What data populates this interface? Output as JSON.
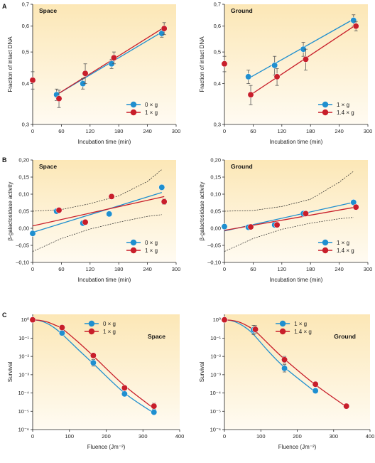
{
  "figure": {
    "row_labels": [
      "A",
      "B",
      "C"
    ],
    "colors": {
      "blue": "#1f8fcf",
      "red": "#c81e2a",
      "bg_top": "#fce9bd",
      "bg_bottom": "#fffaf0"
    }
  },
  "chart_data": [
    {
      "id": "A-space",
      "type": "scatter",
      "title": "Space",
      "xlabel": "Incubation time (min)",
      "ylabel": "Fraction of intact DNA",
      "yscale": "log",
      "xlim": [
        0,
        300
      ],
      "ylim": [
        0.3,
        0.7
      ],
      "xticks": [
        0,
        60,
        120,
        180,
        240,
        300
      ],
      "yticks": [
        0.3,
        0.4,
        0.5,
        0.6,
        0.7
      ],
      "ytick_labels": [
        "0,3",
        "0,4",
        "0,5",
        "0,6",
        "0,7"
      ],
      "legend_position": "bottom-right",
      "series": [
        {
          "name": "0 × g",
          "color": "#1f8fcf",
          "points": [
            [
              50,
              0.37
            ],
            [
              105,
              0.4
            ],
            [
              165,
              0.46
            ],
            [
              270,
              0.57
            ]
          ],
          "errors": [
            0.015,
            0.015,
            0.015,
            0.015
          ],
          "fit": [
            [
              50,
              0.37
            ],
            [
              270,
              0.575
            ]
          ]
        },
        {
          "name": "1 × g",
          "color": "#c81e2a",
          "points": [
            [
              0,
              0.41
            ],
            [
              55,
              0.36
            ],
            [
              110,
              0.43
            ],
            [
              170,
              0.48
            ],
            [
              275,
              0.59
            ]
          ],
          "errors": [
            0.025,
            0.022,
            0.03,
            0.02,
            0.025
          ],
          "fit": [
            [
              50,
              0.37
            ],
            [
              275,
              0.595
            ]
          ]
        }
      ]
    },
    {
      "id": "A-ground",
      "type": "scatter",
      "title": "Ground",
      "xlabel": "Incubation time (min)",
      "ylabel": "Fraction of intact DNA",
      "yscale": "log",
      "xlim": [
        0,
        300
      ],
      "ylim": [
        0.3,
        0.7
      ],
      "xticks": [
        0,
        60,
        120,
        180,
        240,
        300
      ],
      "yticks": [
        0.3,
        0.4,
        0.5,
        0.6,
        0.7
      ],
      "ytick_labels": [
        "0,3",
        "0,4",
        "0,5",
        "0,6",
        "0,7"
      ],
      "legend_position": "bottom-right",
      "series": [
        {
          "name": "1 × g",
          "color": "#1f8fcf",
          "points": [
            [
              50,
              0.42
            ],
            [
              105,
              0.455
            ],
            [
              165,
              0.51
            ],
            [
              270,
              0.625
            ]
          ],
          "errors": [
            0.02,
            0.03,
            0.025,
            0.025
          ],
          "fit": [
            [
              50,
              0.415
            ],
            [
              270,
              0.63
            ]
          ]
        },
        {
          "name": "1.4 × g",
          "color": "#c81e2a",
          "points": [
            [
              0,
              0.46
            ],
            [
              55,
              0.37
            ],
            [
              110,
              0.42
            ],
            [
              170,
              0.475
            ],
            [
              275,
              0.6
            ]
          ],
          "errors": [
            0.025,
            0.025,
            0.025,
            0.035,
            0.02
          ],
          "fit": [
            [
              55,
              0.37
            ],
            [
              275,
              0.605
            ]
          ]
        }
      ]
    },
    {
      "id": "B-space",
      "type": "scatter",
      "title": "Space",
      "xlabel": "Incubation time (min)",
      "ylabel": "β-galactosidase activity",
      "yscale": "linear",
      "xlim": [
        0,
        300
      ],
      "ylim": [
        -0.1,
        0.2
      ],
      "xticks": [
        0,
        60,
        120,
        180,
        240,
        300
      ],
      "yticks": [
        -0.1,
        -0.05,
        0.0,
        0.05,
        0.1,
        0.15,
        0.2
      ],
      "ytick_labels": [
        "–0,10",
        "–0,05",
        "0,00",
        "0,05",
        "0,10",
        "0,15",
        "0,20"
      ],
      "legend_position": "bottom-right",
      "series": [
        {
          "name": "0 × g",
          "color": "#1f8fcf",
          "points": [
            [
              0,
              -0.015
            ],
            [
              50,
              0.05
            ],
            [
              105,
              0.015
            ],
            [
              160,
              0.042
            ],
            [
              270,
              0.12
            ]
          ],
          "errors": [
            0.005,
            0.003,
            0.004,
            0.003,
            0.007
          ],
          "fit": [
            [
              0,
              -0.012
            ],
            [
              270,
              0.105
            ]
          ]
        },
        {
          "name": "1 × g",
          "color": "#c81e2a",
          "points": [
            [
              55,
              0.053
            ],
            [
              110,
              0.018
            ],
            [
              165,
              0.093
            ],
            [
              275,
              0.078
            ]
          ],
          "errors": [
            0.003,
            0.003,
            0.004,
            0.008
          ],
          "fit": [
            [
              0,
              0.007
            ],
            [
              275,
              0.093
            ]
          ]
        }
      ],
      "confidence_band": {
        "upper": [
          [
            0,
            0.05
          ],
          [
            60,
            0.055
          ],
          [
            120,
            0.072
          ],
          [
            180,
            0.095
          ],
          [
            240,
            0.137
          ],
          [
            270,
            0.172
          ]
        ],
        "lower": [
          [
            0,
            -0.068
          ],
          [
            60,
            -0.03
          ],
          [
            120,
            -0.002
          ],
          [
            180,
            0.018
          ],
          [
            240,
            0.035
          ],
          [
            270,
            0.04
          ]
        ]
      }
    },
    {
      "id": "B-ground",
      "type": "scatter",
      "title": "Ground",
      "xlabel": "Incubation time (min)",
      "ylabel": "β-galactosidase activity",
      "yscale": "linear",
      "xlim": [
        0,
        300
      ],
      "ylim": [
        -0.1,
        0.2
      ],
      "xticks": [
        0,
        60,
        120,
        180,
        240,
        300
      ],
      "yticks": [
        -0.1,
        -0.05,
        0.0,
        0.05,
        0.1,
        0.15,
        0.2
      ],
      "ytick_labels": [
        "–0,10",
        "–0,05",
        "0,00",
        "0,05",
        "0,10",
        "0,15",
        "0,20"
      ],
      "legend_position": "bottom-right",
      "series": [
        {
          "name": "1 × g",
          "color": "#1f8fcf",
          "points": [
            [
              0,
              0.005
            ],
            [
              50,
              0.003
            ],
            [
              105,
              0.01
            ],
            [
              165,
              0.043
            ],
            [
              270,
              0.076
            ]
          ],
          "errors": [
            0.003,
            0.005,
            0.003,
            0.003,
            0.003
          ],
          "fit": [
            [
              0,
              -0.008
            ],
            [
              270,
              0.076
            ]
          ]
        },
        {
          "name": "1.4 × g",
          "color": "#c81e2a",
          "points": [
            [
              55,
              0.004
            ],
            [
              110,
              0.01
            ],
            [
              170,
              0.043
            ],
            [
              275,
              0.062
            ]
          ],
          "errors": [
            0.003,
            0.003,
            0.003,
            0.005
          ],
          "fit": [
            [
              0,
              -0.006
            ],
            [
              275,
              0.062
            ]
          ]
        }
      ],
      "confidence_band": {
        "upper": [
          [
            0,
            0.05
          ],
          [
            60,
            0.052
          ],
          [
            120,
            0.064
          ],
          [
            180,
            0.085
          ],
          [
            240,
            0.135
          ],
          [
            270,
            0.167
          ]
        ],
        "lower": [
          [
            0,
            -0.068
          ],
          [
            60,
            -0.03
          ],
          [
            120,
            -0.003
          ],
          [
            180,
            0.015
          ],
          [
            240,
            0.028
          ],
          [
            270,
            0.032
          ]
        ]
      }
    },
    {
      "id": "C-space",
      "type": "scatter",
      "title": "Space",
      "xlabel": "Fluence (Jm⁻²)",
      "ylabel": "Survival",
      "yscale": "log",
      "xlim": [
        0,
        400
      ],
      "ylim": [
        -6,
        0.3
      ],
      "xticks": [
        0,
        100,
        200,
        300,
        400
      ],
      "yticks": [
        0,
        -1,
        -2,
        -3,
        -4,
        -5,
        -6
      ],
      "ytick_labels": [
        "10⁰",
        "10⁻¹",
        "10⁻²",
        "10⁻³",
        "10⁻⁴",
        "10⁻⁵",
        "10⁻⁶"
      ],
      "legend_position": "top-right",
      "series": [
        {
          "name": "0 × g",
          "color": "#1f8fcf",
          "points": [
            [
              0,
              0
            ],
            [
              80,
              -0.72
            ],
            [
              165,
              -2.35
            ],
            [
              250,
              -4.05
            ],
            [
              330,
              -5.05
            ]
          ],
          "errors": [
            0.1,
            0.1,
            0.18,
            0.1,
            0.08
          ],
          "fit_curve": [
            [
              0,
              0
            ],
            [
              20,
              -0.05
            ],
            [
              40,
              -0.2
            ],
            [
              60,
              -0.45
            ],
            [
              80,
              -0.78
            ],
            [
              120,
              -1.55
            ],
            [
              165,
              -2.4
            ],
            [
              250,
              -4.0
            ],
            [
              330,
              -5.1
            ]
          ]
        },
        {
          "name": "1 × g",
          "color": "#c81e2a",
          "points": [
            [
              0,
              0
            ],
            [
              80,
              -0.42
            ],
            [
              165,
              -1.95
            ],
            [
              250,
              -3.72
            ],
            [
              330,
              -4.72
            ]
          ],
          "errors": [
            0.1,
            0.1,
            0.1,
            0.12,
            0.16
          ],
          "fit_curve": [
            [
              0,
              0
            ],
            [
              20,
              -0.03
            ],
            [
              40,
              -0.12
            ],
            [
              60,
              -0.28
            ],
            [
              80,
              -0.48
            ],
            [
              120,
              -1.15
            ],
            [
              165,
              -1.98
            ],
            [
              250,
              -3.6
            ],
            [
              330,
              -4.85
            ]
          ]
        }
      ]
    },
    {
      "id": "C-ground",
      "type": "scatter",
      "title": "Ground",
      "xlabel": "Fluence (Jm⁻²)",
      "ylabel": "Survival",
      "yscale": "log",
      "xlim": [
        0,
        400
      ],
      "ylim": [
        -6,
        0.3
      ],
      "xticks": [
        0,
        100,
        200,
        300,
        400
      ],
      "yticks": [
        0,
        -1,
        -2,
        -3,
        -4,
        -5,
        -6
      ],
      "ytick_labels": [
        "10⁰",
        "10⁻¹",
        "10⁻²",
        "10⁻³",
        "10⁻⁴",
        "10⁻⁵",
        "10⁻⁶"
      ],
      "legend_position": "top-right",
      "series": [
        {
          "name": "1 × g",
          "color": "#1f8fcf",
          "points": [
            [
              0,
              0
            ],
            [
              80,
              -0.55
            ],
            [
              165,
              -2.65
            ],
            [
              250,
              -3.88
            ]
          ],
          "errors": [
            0.1,
            0.25,
            0.2,
            0.08
          ],
          "fit_curve": [
            [
              0,
              0
            ],
            [
              20,
              -0.05
            ],
            [
              40,
              -0.2
            ],
            [
              60,
              -0.45
            ],
            [
              80,
              -0.8
            ],
            [
              120,
              -1.7
            ],
            [
              165,
              -2.6
            ],
            [
              250,
              -3.95
            ]
          ]
        },
        {
          "name": "1.4 × g",
          "color": "#c81e2a",
          "points": [
            [
              0,
              0
            ],
            [
              85,
              -0.52
            ],
            [
              165,
              -2.18
            ],
            [
              250,
              -3.52
            ],
            [
              335,
              -4.72
            ]
          ],
          "errors": [
            0.1,
            0.2,
            0.18,
            0.1,
            0.12
          ],
          "fit_curve": [
            [
              0,
              0
            ],
            [
              20,
              -0.03
            ],
            [
              40,
              -0.12
            ],
            [
              60,
              -0.3
            ],
            [
              85,
              -0.62
            ],
            [
              120,
              -1.3
            ],
            [
              165,
              -2.15
            ],
            [
              250,
              -3.55
            ],
            [
              335,
              -4.75
            ]
          ]
        }
      ]
    }
  ]
}
